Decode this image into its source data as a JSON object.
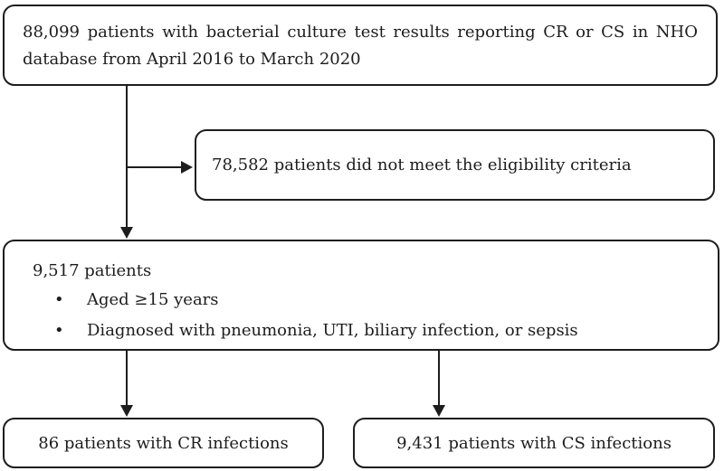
{
  "figure": {
    "background": "#ffffff",
    "stroke_color": "#1d1d1d",
    "bullet_icon": "•",
    "boxes": {
      "source": {
        "line1": "88,099 patients with bacterial culture test results reporting CR or CS in NHO",
        "line2": "database from April 2016 to March 2020"
      },
      "excluded": {
        "text": "78,582 patients did not meet the eligibility criteria"
      },
      "eligible": {
        "title": "9,517 patients",
        "bullets": [
          "Aged ≥15 years",
          "Diagnosed with pneumonia, UTI, biliary infection, or sepsis"
        ]
      },
      "cr": {
        "text": "86 patients with CR infections"
      },
      "cs": {
        "text": "9,431 patients with CS infections"
      }
    }
  }
}
